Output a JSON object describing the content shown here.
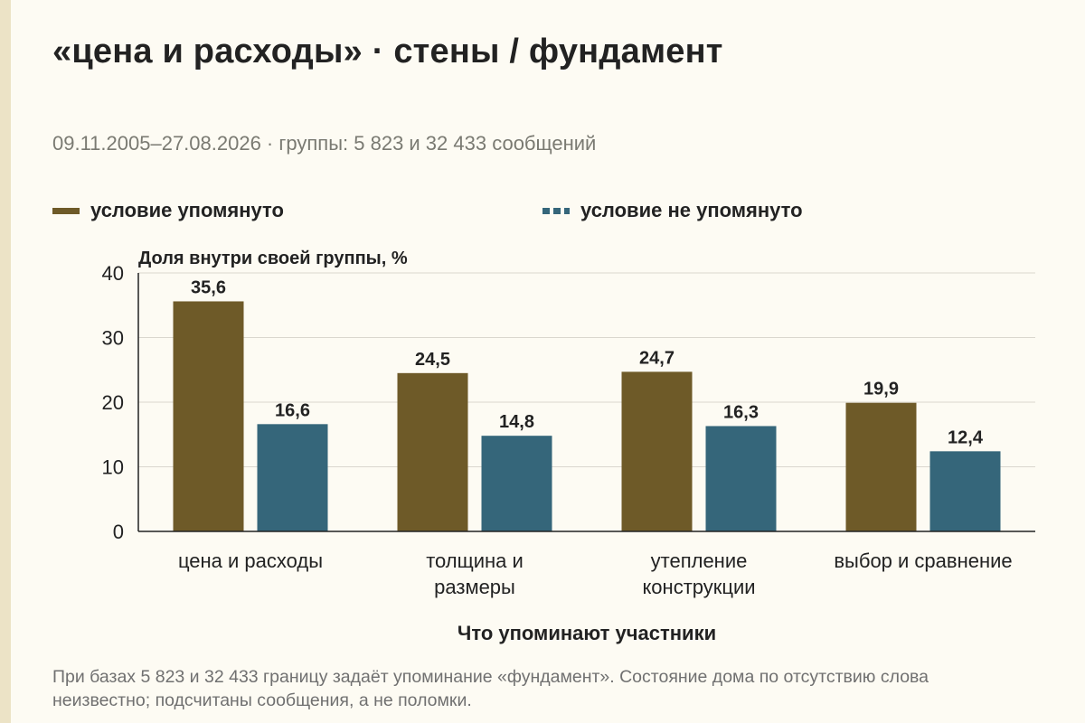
{
  "title": "«цена и расходы» · стены / фундамент",
  "subtitle": "09.11.2005–27.08.2026 · группы: 5 823 и 32 433 сообщений",
  "legend": {
    "series_a": "условие упомянуто",
    "series_b": "условие не упомянуто"
  },
  "footnote": "При базах 5 823 и 32 433 границу задаёт упоминание «фундамент». Состояние дома по отсутствию слова неизвестно; подсчитаны сообщения, а не поломки.",
  "colors": {
    "series_a": "#6e5a28",
    "series_b": "#35667a",
    "grid": "#dad7ce",
    "axis": "#222222"
  },
  "chart_data": {
    "type": "bar",
    "ylabel": "Доля внутри своей группы, %",
    "xlabel": "Что упоминают участники",
    "ylim": [
      0,
      40
    ],
    "yticks": [
      "0",
      "10",
      "20",
      "30",
      "40"
    ],
    "grid": true,
    "legend_position": "top",
    "categories": [
      [
        "цена и расходы"
      ],
      [
        "толщина и",
        "размеры"
      ],
      [
        "утепление",
        "конструкции"
      ],
      [
        "выбор и сравнение"
      ]
    ],
    "series": [
      {
        "name": "условие упомянуто",
        "values": [
          35.6,
          24.5,
          24.7,
          19.9
        ],
        "labels": [
          "35,6",
          "24,5",
          "24,7",
          "19,9"
        ]
      },
      {
        "name": "условие не упомянуто",
        "values": [
          16.6,
          14.8,
          16.3,
          12.4
        ],
        "labels": [
          "16,6",
          "14,8",
          "16,3",
          "12,4"
        ]
      }
    ]
  }
}
